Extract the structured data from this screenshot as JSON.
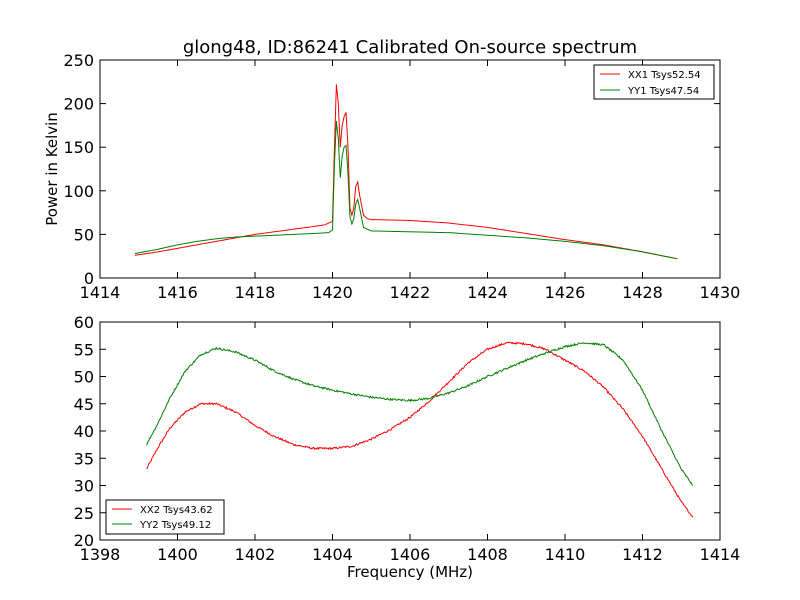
{
  "chart_data": [
    {
      "type": "line",
      "title": "glong48, ID:86241 Calibrated On-source spectrum",
      "xlabel": "",
      "ylabel": "Power in Kelvin",
      "xlim": [
        1414,
        1430
      ],
      "ylim": [
        0,
        250
      ],
      "xticks": [
        1414,
        1416,
        1418,
        1420,
        1422,
        1424,
        1426,
        1428,
        1430
      ],
      "yticks": [
        0,
        50,
        100,
        150,
        200,
        250
      ],
      "grid": false,
      "legend_position": "top-right",
      "series": [
        {
          "name": "XX1 Tsys52.54",
          "color": "#ff0000",
          "points": [
            [
              1414.9,
              26
            ],
            [
              1415.5,
              30
            ],
            [
              1416.0,
              34
            ],
            [
              1416.5,
              38
            ],
            [
              1417.0,
              42
            ],
            [
              1417.5,
              46
            ],
            [
              1418.0,
              50
            ],
            [
              1418.5,
              53
            ],
            [
              1419.0,
              56
            ],
            [
              1419.5,
              59
            ],
            [
              1419.8,
              61
            ],
            [
              1420.0,
              65
            ],
            [
              1420.05,
              150
            ],
            [
              1420.1,
              222
            ],
            [
              1420.15,
              200
            ],
            [
              1420.2,
              150
            ],
            [
              1420.25,
              175
            ],
            [
              1420.3,
              185
            ],
            [
              1420.35,
              190
            ],
            [
              1420.4,
              150
            ],
            [
              1420.45,
              80
            ],
            [
              1420.5,
              72
            ],
            [
              1420.55,
              80
            ],
            [
              1420.6,
              105
            ],
            [
              1420.65,
              110
            ],
            [
              1420.7,
              95
            ],
            [
              1420.8,
              72
            ],
            [
              1420.9,
              68
            ],
            [
              1421.0,
              67
            ],
            [
              1422.0,
              66
            ],
            [
              1423.0,
              63
            ],
            [
              1424.0,
              58
            ],
            [
              1425.0,
              51
            ],
            [
              1426.0,
              44
            ],
            [
              1427.0,
              38
            ],
            [
              1428.0,
              30
            ],
            [
              1428.9,
              22
            ]
          ]
        },
        {
          "name": "YY1 Tsys47.54",
          "color": "#008000",
          "points": [
            [
              1414.9,
              28
            ],
            [
              1415.5,
              33
            ],
            [
              1416.0,
              38
            ],
            [
              1416.5,
              42
            ],
            [
              1417.0,
              45
            ],
            [
              1417.5,
              47
            ],
            [
              1418.0,
              48
            ],
            [
              1418.5,
              49
            ],
            [
              1419.0,
              50
            ],
            [
              1419.5,
              51
            ],
            [
              1419.9,
              52
            ],
            [
              1420.0,
              55
            ],
            [
              1420.05,
              130
            ],
            [
              1420.1,
              180
            ],
            [
              1420.15,
              160
            ],
            [
              1420.2,
              115
            ],
            [
              1420.25,
              140
            ],
            [
              1420.3,
              150
            ],
            [
              1420.35,
              152
            ],
            [
              1420.4,
              120
            ],
            [
              1420.45,
              70
            ],
            [
              1420.5,
              62
            ],
            [
              1420.55,
              68
            ],
            [
              1420.6,
              85
            ],
            [
              1420.65,
              90
            ],
            [
              1420.7,
              80
            ],
            [
              1420.8,
              58
            ],
            [
              1421.0,
              54
            ],
            [
              1422.0,
              53
            ],
            [
              1423.0,
              52
            ],
            [
              1424.0,
              49
            ],
            [
              1425.0,
              46
            ],
            [
              1426.0,
              42
            ],
            [
              1427.0,
              37
            ],
            [
              1428.0,
              30
            ],
            [
              1428.9,
              22
            ]
          ]
        }
      ]
    },
    {
      "type": "line",
      "title": "",
      "xlabel": "Frequency (MHz)",
      "ylabel": "",
      "xlim": [
        1398,
        1414
      ],
      "ylim": [
        20,
        60
      ],
      "xticks": [
        1398,
        1400,
        1402,
        1404,
        1406,
        1408,
        1410,
        1412,
        1414
      ],
      "yticks": [
        20,
        25,
        30,
        35,
        40,
        45,
        50,
        55,
        60
      ],
      "grid": false,
      "legend_position": "bottom-left",
      "series": [
        {
          "name": "XX2 Tsys43.62",
          "color": "#ff0000",
          "points": [
            [
              1399.2,
              33
            ],
            [
              1399.5,
              37
            ],
            [
              1399.8,
              40.5
            ],
            [
              1400.2,
              43.5
            ],
            [
              1400.6,
              45
            ],
            [
              1401.0,
              45
            ],
            [
              1401.5,
              43.5
            ],
            [
              1402.0,
              41
            ],
            [
              1402.5,
              39
            ],
            [
              1403.0,
              37.5
            ],
            [
              1403.5,
              36.8
            ],
            [
              1404.0,
              36.8
            ],
            [
              1404.5,
              37.2
            ],
            [
              1405.0,
              38.5
            ],
            [
              1405.5,
              40.3
            ],
            [
              1406.0,
              42.5
            ],
            [
              1406.5,
              45.5
            ],
            [
              1407.0,
              49
            ],
            [
              1407.5,
              52.5
            ],
            [
              1408.0,
              55
            ],
            [
              1408.5,
              56.2
            ],
            [
              1409.0,
              56
            ],
            [
              1409.5,
              55
            ],
            [
              1410.0,
              53
            ],
            [
              1410.5,
              51
            ],
            [
              1411.0,
              48
            ],
            [
              1411.5,
              44
            ],
            [
              1412.0,
              39
            ],
            [
              1412.5,
              33
            ],
            [
              1413.0,
              27
            ],
            [
              1413.3,
              24.2
            ]
          ]
        },
        {
          "name": "YY2 Tsys49.12",
          "color": "#008000",
          "points": [
            [
              1399.2,
              37.5
            ],
            [
              1399.5,
              41.5
            ],
            [
              1399.8,
              46
            ],
            [
              1400.2,
              51
            ],
            [
              1400.6,
              54
            ],
            [
              1401.0,
              55.2
            ],
            [
              1401.5,
              54.5
            ],
            [
              1402.0,
              53
            ],
            [
              1402.5,
              51
            ],
            [
              1403.0,
              49.5
            ],
            [
              1403.5,
              48.3
            ],
            [
              1404.0,
              47.5
            ],
            [
              1404.5,
              46.8
            ],
            [
              1405.0,
              46.2
            ],
            [
              1405.5,
              45.8
            ],
            [
              1406.0,
              45.6
            ],
            [
              1406.5,
              46
            ],
            [
              1407.0,
              47
            ],
            [
              1407.5,
              48.3
            ],
            [
              1408.0,
              50
            ],
            [
              1408.5,
              51.5
            ],
            [
              1409.0,
              53
            ],
            [
              1409.5,
              54.3
            ],
            [
              1410.0,
              55.5
            ],
            [
              1410.5,
              56.2
            ],
            [
              1411.0,
              55.8
            ],
            [
              1411.5,
              53
            ],
            [
              1412.0,
              47.5
            ],
            [
              1412.5,
              40
            ],
            [
              1413.0,
              33
            ],
            [
              1413.3,
              30
            ]
          ]
        }
      ]
    }
  ]
}
